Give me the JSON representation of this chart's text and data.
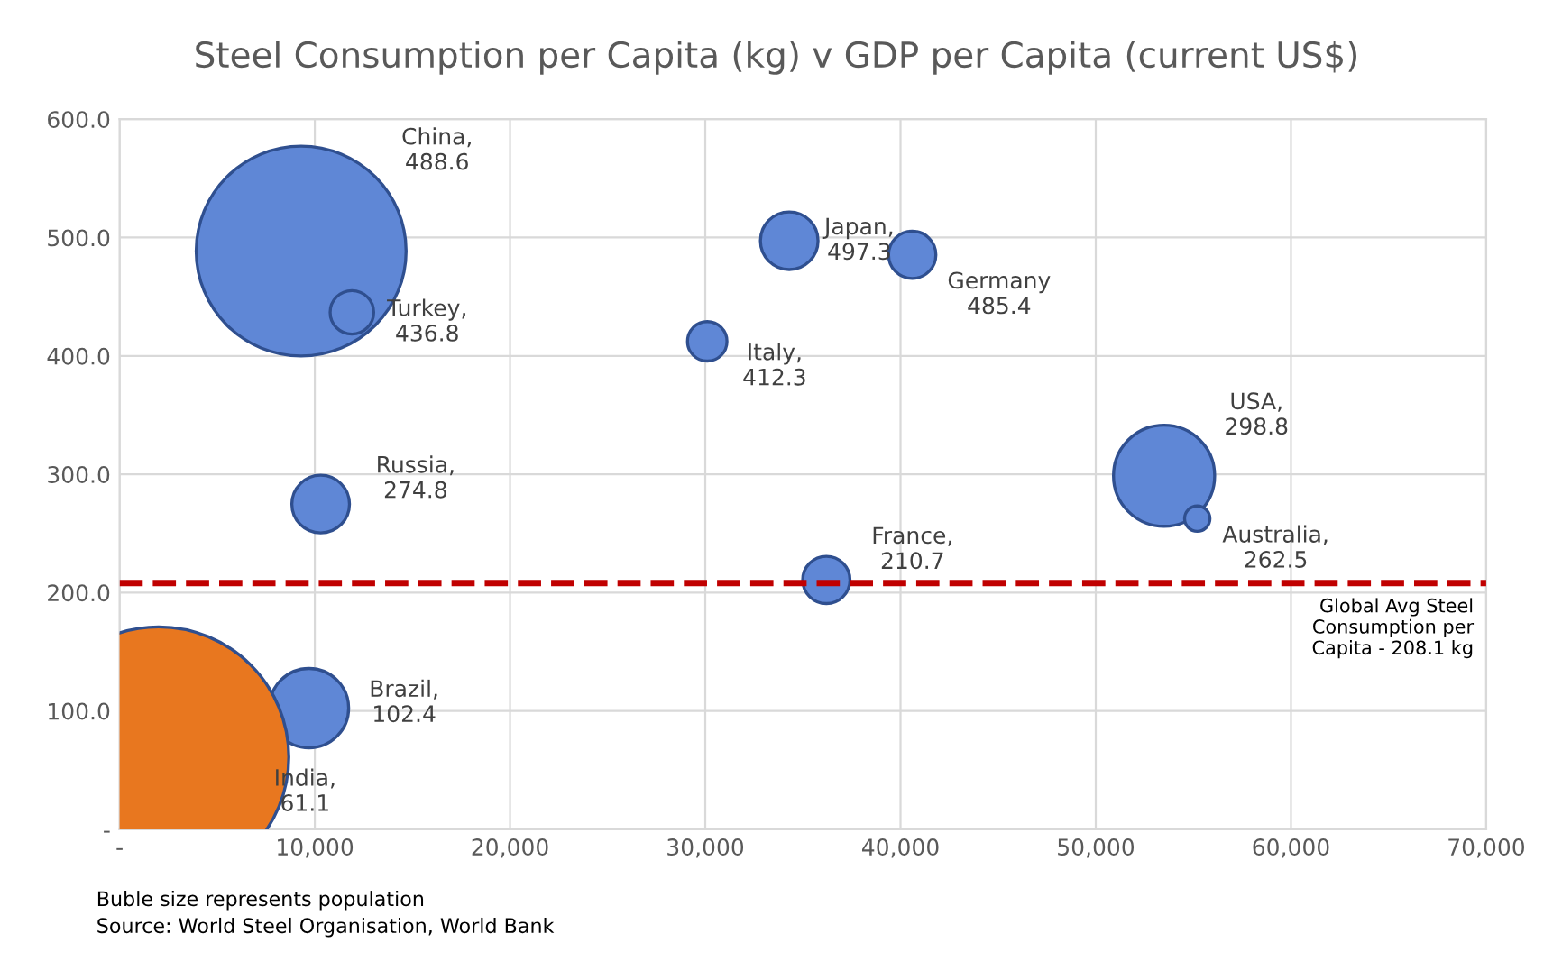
{
  "chart_data": {
    "type": "bubble",
    "title": "Steel Consumption per Capita (kg) v GDP per Capita (current US$)",
    "x": [
      9300,
      11900,
      10300,
      9700,
      2000,
      30100,
      34300,
      40600,
      36200,
      53500,
      55200
    ],
    "values": [
      488.6,
      436.8,
      274.8,
      102.4,
      61.1,
      412.3,
      497.3,
      485.4,
      210.7,
      298.8,
      262.5
    ],
    "sizes": [
      0.65,
      0.028,
      0.049,
      0.093,
      1,
      0.023,
      0.049,
      0.033,
      0.033,
      0.151,
      0.0095
    ],
    "colors": [
      "#5f87d6",
      "#5f87d6",
      "#5f87d6",
      "#5f87d6",
      "#e8771f",
      "#5f87d6",
      "#5f87d6",
      "#5f87d6",
      "#5f87d6",
      "#5f87d6",
      "#5f87d6"
    ],
    "value_labels": [
      "China,\n488.6",
      "Turkey,\n436.8",
      "Russia,\n274.8",
      "Brazil,\n102.4",
      "India,\n61.1",
      "Italy,\n412.3",
      "Japan,\n497.3",
      "Germany\n485.4",
      "France,\n210.7",
      "USA,\n298.8",
      "Australia,\n262.5"
    ],
    "xlim": [
      0,
      70000
    ],
    "xticks": [
      {
        "value": 0,
        "label": "-"
      },
      {
        "value": 10000,
        "label": "10,000"
      },
      {
        "value": 20000,
        "label": "20,000"
      },
      {
        "value": 30000,
        "label": "30,000"
      },
      {
        "value": 40000,
        "label": "40,000"
      },
      {
        "value": 50000,
        "label": "50,000"
      },
      {
        "value": 60000,
        "label": "60,000"
      },
      {
        "value": 70000,
        "label": "70,000"
      }
    ],
    "ylim": [
      0,
      600
    ],
    "yticks": [
      {
        "value": 0,
        "label": "-"
      },
      {
        "value": 100,
        "label": "100.0"
      },
      {
        "value": 200,
        "label": "200.0"
      },
      {
        "value": 300,
        "label": "300.0"
      },
      {
        "value": 400,
        "label": "400.0"
      },
      {
        "value": 500,
        "label": "500.0"
      },
      {
        "value": 600,
        "label": "600.0"
      }
    ],
    "grid": true,
    "ref_lines": [
      {
        "axis": "y",
        "value": 208.1,
        "label": "Global Avg Steel\nConsumption per\nCapita - 208.1 kg",
        "color": "#c00000",
        "line_style": "dashed"
      }
    ],
    "annotations": [
      "Buble size represents population",
      "Source: World Steel Organisation, World Bank"
    ]
  }
}
